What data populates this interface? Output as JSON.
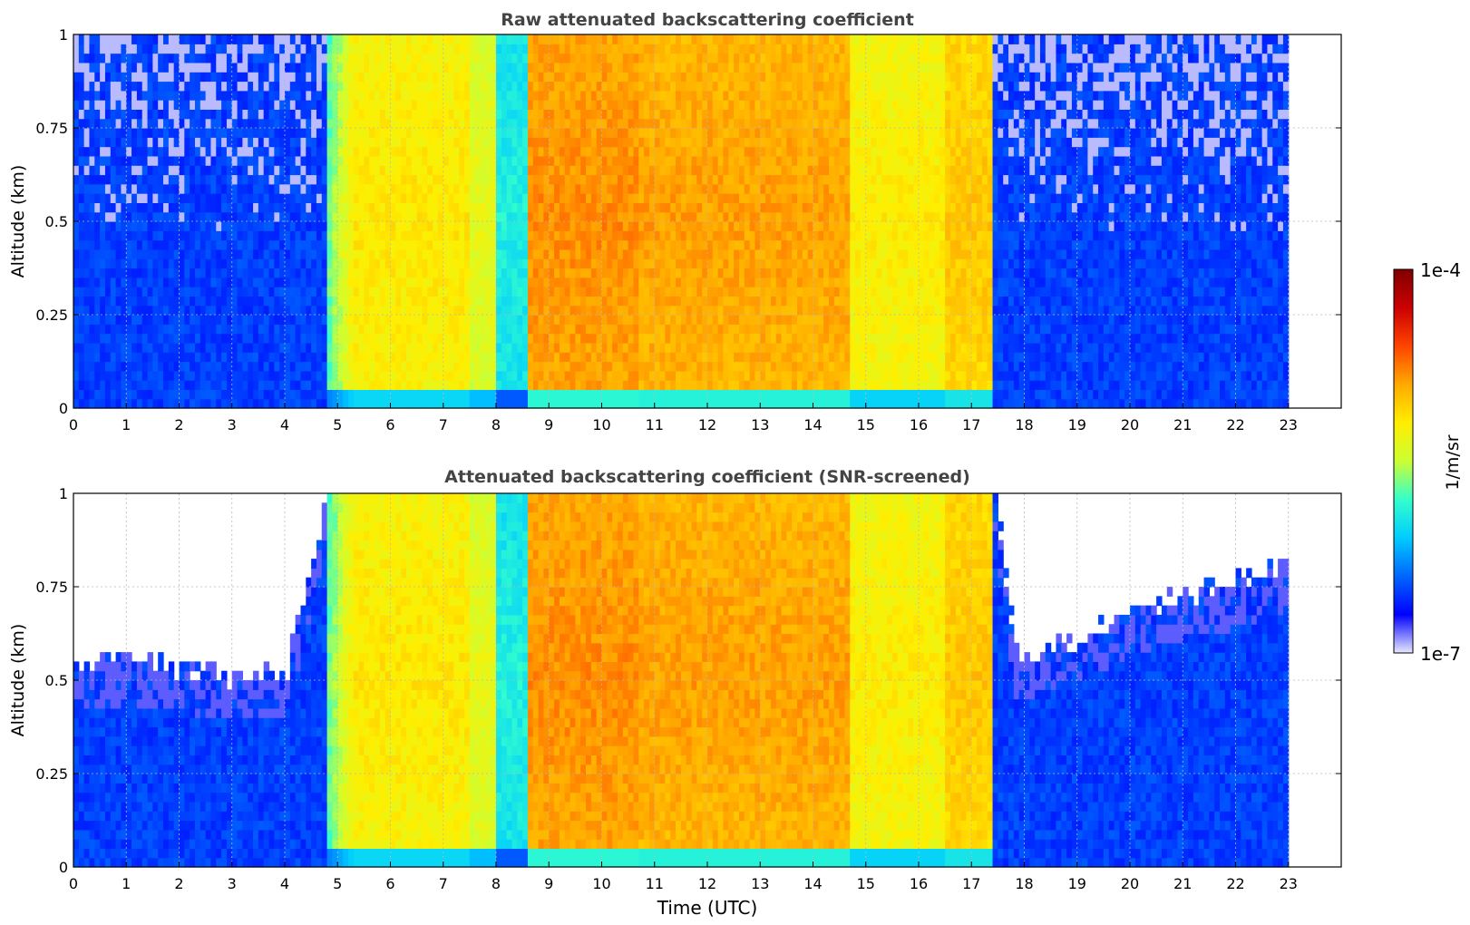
{
  "colorbar": {
    "label": "1/m/sr",
    "max_label": "1e-4",
    "min_label": "1e-7",
    "scale": "log",
    "range": [
      1e-07,
      0.0001
    ],
    "colormap": [
      "#e8e8ff",
      "#0000ff",
      "#0066ff",
      "#00ccff",
      "#33ffcc",
      "#ccff33",
      "#ffee00",
      "#ffaa00",
      "#ff4400",
      "#cc0000",
      "#800000"
    ]
  },
  "chart_data": [
    {
      "type": "heatmap",
      "title": "Raw attenuated backscattering coefficient",
      "xlabel": "",
      "ylabel": "Altitude (km)",
      "xlim": [
        0,
        24
      ],
      "ylim": [
        0,
        1
      ],
      "xticks": [
        "0",
        "1",
        "2",
        "3",
        "4",
        "5",
        "6",
        "7",
        "8",
        "9",
        "10",
        "11",
        "12",
        "13",
        "14",
        "15",
        "16",
        "17",
        "18",
        "19",
        "20",
        "21",
        "22",
        "23"
      ],
      "yticks": [
        "0",
        "0.25",
        "0.5",
        "0.75",
        "1"
      ],
      "grid": true,
      "data_end_time": 23,
      "time_segments": [
        {
          "start": 0.0,
          "end": 4.8,
          "level": "low"
        },
        {
          "start": 4.8,
          "end": 5.3,
          "level": "medium"
        },
        {
          "start": 5.3,
          "end": 8.0,
          "level": "high"
        },
        {
          "start": 8.0,
          "end": 8.6,
          "level": "medium"
        },
        {
          "start": 8.6,
          "end": 14.7,
          "level": "very high"
        },
        {
          "start": 14.7,
          "end": 17.4,
          "level": "high"
        },
        {
          "start": 17.4,
          "end": 23.0,
          "level": "low"
        }
      ]
    },
    {
      "type": "heatmap",
      "title": "Attenuated backscattering coefficient (SNR-screened)",
      "xlabel": "Time (UTC)",
      "ylabel": "Altitude (km)",
      "xlim": [
        0,
        24
      ],
      "ylim": [
        0,
        1
      ],
      "xticks": [
        "0",
        "1",
        "2",
        "3",
        "4",
        "5",
        "6",
        "7",
        "8",
        "9",
        "10",
        "11",
        "12",
        "13",
        "14",
        "15",
        "16",
        "17",
        "18",
        "19",
        "20",
        "21",
        "22",
        "23"
      ],
      "yticks": [
        "0",
        "0.25",
        "0.5",
        "0.75",
        "1"
      ],
      "grid": true,
      "data_end_time": 23,
      "screened_top_altitude_km": [
        {
          "time": 0,
          "alt": 0.52
        },
        {
          "time": 1,
          "alt": 0.55
        },
        {
          "time": 2,
          "alt": 0.52
        },
        {
          "time": 3,
          "alt": 0.5
        },
        {
          "time": 4,
          "alt": 0.52
        },
        {
          "time": 4.8,
          "alt": 1.0
        },
        {
          "time": 17.4,
          "alt": 1.0
        },
        {
          "time": 17.8,
          "alt": 0.55
        },
        {
          "time": 19,
          "alt": 0.6
        },
        {
          "time": 20,
          "alt": 0.68
        },
        {
          "time": 21,
          "alt": 0.72
        },
        {
          "time": 22,
          "alt": 0.75
        },
        {
          "time": 23,
          "alt": 0.8
        }
      ]
    }
  ]
}
